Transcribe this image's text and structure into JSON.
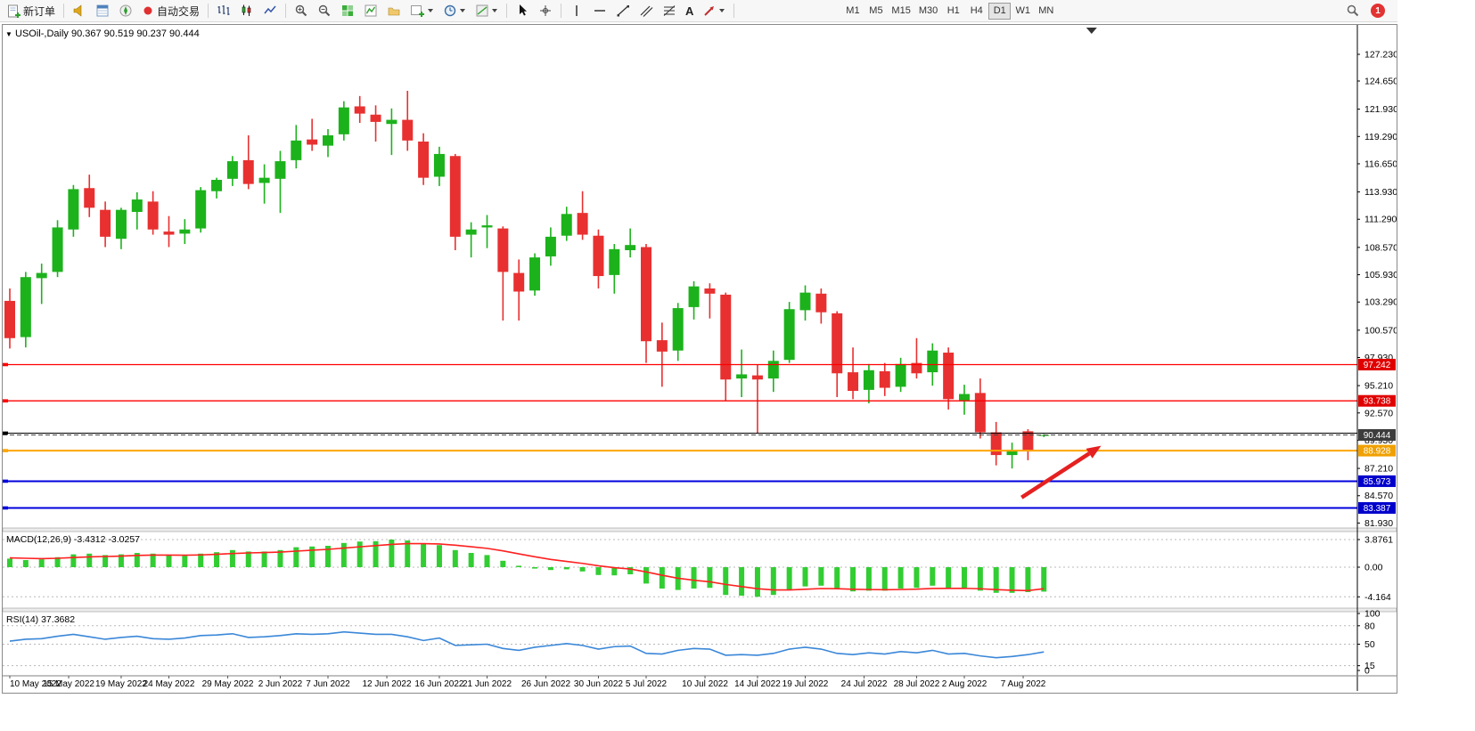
{
  "toolbar": {
    "new_order": "新订单",
    "auto_trading": "自动交易",
    "text_tool": "A",
    "timeframes": [
      "M1",
      "M5",
      "M15",
      "M30",
      "H1",
      "H4",
      "D1",
      "W1",
      "MN"
    ],
    "active_timeframe": "D1",
    "notification_count": "1"
  },
  "chart": {
    "symbol_title": "USOil-,Daily",
    "ohlc_text": "90.367 90.519 90.237 90.444",
    "price_axis_labels": [
      "127.230",
      "124.650",
      "121.930",
      "119.290",
      "116.650",
      "113.930",
      "111.290",
      "108.570",
      "105.930",
      "103.290",
      "100.570",
      "97.930",
      "95.210",
      "92.570",
      "89.930",
      "87.210",
      "84.570",
      "81.930"
    ],
    "colors": {
      "up": "#1CB21C",
      "down": "#E83030",
      "macd_hist": "#32CD32",
      "macd_signal": "#FF2020",
      "rsi_line": "#3A87D8",
      "arrow": "#E52020"
    },
    "levels": [
      {
        "price": 97.242,
        "tag": "97.242",
        "color": "#FF0000",
        "tag_bg": "#E00000",
        "width": 1.3,
        "style": "solid"
      },
      {
        "price": 93.738,
        "tag": "93.738",
        "color": "#FF0000",
        "tag_bg": "#E00000",
        "width": 1.3,
        "style": "solid"
      },
      {
        "price": 90.62,
        "tag": null,
        "color": "#000000",
        "tag_bg": null,
        "width": 1,
        "style": "solid"
      },
      {
        "price": 90.444,
        "tag": "90.444",
        "color": "#444444",
        "tag_bg": "#3C3C3C",
        "width": 1,
        "style": "dashed"
      },
      {
        "price": 88.928,
        "tag": "88.928",
        "color": "#FFA500",
        "tag_bg": "#F0A000",
        "width": 2,
        "style": "solid"
      },
      {
        "price": 85.973,
        "tag": "85.973",
        "color": "#0000DD",
        "tag_bg": "#0000CC",
        "width": 2,
        "style": "solid"
      },
      {
        "price": 83.387,
        "tag": "83.387",
        "color": "#0000DD",
        "tag_bg": "#0000CC",
        "width": 2,
        "style": "solid"
      }
    ],
    "arrow": {
      "from": {
        "i": 63.6,
        "price": 84.4
      },
      "to": {
        "i": 68.6,
        "price": 89.4
      }
    }
  },
  "macd": {
    "label": "MACD(12,26,9) -3.4312 -3.0257",
    "axis_labels": [
      "3.8761",
      "0.00",
      "-4.164"
    ]
  },
  "rsi": {
    "label": "RSI(14) 37.3682",
    "axis_labels": [
      "100",
      "80",
      "50",
      "15",
      "0"
    ]
  },
  "chart_data": {
    "type": "candlestick",
    "symbol": "USOil",
    "timeframe": "Daily",
    "candles": [
      [
        "2022-05-10",
        103.4,
        104.6,
        98.8,
        99.8
      ],
      [
        "2022-05-11",
        99.9,
        106.2,
        98.9,
        105.7
      ],
      [
        "2022-05-12",
        105.6,
        107.0,
        103.1,
        106.1
      ],
      [
        "2022-05-13",
        106.2,
        111.2,
        105.7,
        110.5
      ],
      [
        "2022-05-16",
        110.3,
        114.6,
        109.6,
        114.2
      ],
      [
        "2022-05-17",
        114.3,
        115.6,
        111.5,
        112.4
      ],
      [
        "2022-05-18",
        112.2,
        113.0,
        108.6,
        109.6
      ],
      [
        "2022-05-19",
        109.4,
        112.4,
        108.4,
        112.2
      ],
      [
        "2022-05-20",
        112.0,
        113.9,
        110.3,
        113.2
      ],
      [
        "2022-05-23",
        113.0,
        114.0,
        109.8,
        110.3
      ],
      [
        "2022-05-24",
        110.1,
        111.6,
        108.6,
        109.8
      ],
      [
        "2022-05-25",
        109.9,
        111.3,
        108.9,
        110.3
      ],
      [
        "2022-05-26",
        110.4,
        114.4,
        110.0,
        114.1
      ],
      [
        "2022-05-27",
        114.0,
        115.3,
        113.3,
        115.1
      ],
      [
        "2022-05-30",
        115.2,
        117.4,
        114.5,
        116.9
      ],
      [
        "2022-05-31",
        117.0,
        119.4,
        114.2,
        114.7
      ],
      [
        "2022-06-01",
        114.8,
        116.6,
        112.8,
        115.3
      ],
      [
        "2022-06-02",
        115.2,
        117.9,
        111.9,
        116.9
      ],
      [
        "2022-06-03",
        117.0,
        120.4,
        116.2,
        118.9
      ],
      [
        "2022-06-06",
        119.0,
        121.0,
        117.9,
        118.5
      ],
      [
        "2022-06-07",
        118.4,
        120.0,
        117.3,
        119.4
      ],
      [
        "2022-06-08",
        119.5,
        122.7,
        118.9,
        122.1
      ],
      [
        "2022-06-09",
        122.2,
        123.2,
        120.6,
        121.5
      ],
      [
        "2022-06-10",
        121.4,
        122.3,
        118.8,
        120.7
      ],
      [
        "2022-06-13",
        120.5,
        122.0,
        117.5,
        120.9
      ],
      [
        "2022-06-14",
        120.9,
        123.7,
        117.9,
        118.9
      ],
      [
        "2022-06-15",
        118.8,
        119.6,
        114.6,
        115.3
      ],
      [
        "2022-06-16",
        115.4,
        118.3,
        114.5,
        117.6
      ],
      [
        "2022-06-17",
        117.4,
        117.6,
        108.3,
        109.6
      ],
      [
        "2022-06-20",
        109.8,
        111.0,
        107.6,
        110.3
      ],
      [
        "2022-06-21",
        110.5,
        111.7,
        108.5,
        110.7
      ],
      [
        "2022-06-22",
        110.4,
        110.6,
        101.5,
        106.2
      ],
      [
        "2022-06-23",
        106.1,
        107.4,
        101.5,
        104.3
      ],
      [
        "2022-06-24",
        104.4,
        108.0,
        103.9,
        107.6
      ],
      [
        "2022-06-27",
        107.7,
        110.5,
        106.8,
        109.6
      ],
      [
        "2022-06-28",
        109.7,
        112.5,
        109.2,
        111.8
      ],
      [
        "2022-06-29",
        111.9,
        114.0,
        109.3,
        109.8
      ],
      [
        "2022-06-30",
        109.7,
        110.3,
        104.6,
        105.8
      ],
      [
        "2022-07-01",
        105.9,
        108.9,
        104.1,
        108.4
      ],
      [
        "2022-07-04",
        108.3,
        110.4,
        107.6,
        108.8
      ],
      [
        "2022-07-05",
        108.6,
        108.9,
        97.4,
        99.5
      ],
      [
        "2022-07-06",
        99.6,
        101.3,
        95.1,
        98.5
      ],
      [
        "2022-07-07",
        98.6,
        103.2,
        97.6,
        102.7
      ],
      [
        "2022-07-08",
        102.8,
        105.3,
        101.6,
        104.8
      ],
      [
        "2022-07-11",
        104.6,
        105.1,
        101.7,
        104.1
      ],
      [
        "2022-07-12",
        104.0,
        104.2,
        93.8,
        95.8
      ],
      [
        "2022-07-13",
        95.9,
        98.7,
        94.1,
        96.3
      ],
      [
        "2022-07-14",
        96.2,
        97.2,
        90.6,
        95.8
      ],
      [
        "2022-07-15",
        95.9,
        98.6,
        94.6,
        97.6
      ],
      [
        "2022-07-18",
        97.7,
        103.3,
        97.4,
        102.6
      ],
      [
        "2022-07-19",
        102.5,
        104.9,
        101.5,
        104.2
      ],
      [
        "2022-07-20",
        104.1,
        104.6,
        101.2,
        102.3
      ],
      [
        "2022-07-21",
        102.2,
        102.4,
        94.1,
        96.4
      ],
      [
        "2022-07-22",
        96.5,
        98.9,
        93.9,
        94.7
      ],
      [
        "2022-07-25",
        94.8,
        97.3,
        93.5,
        96.7
      ],
      [
        "2022-07-26",
        96.6,
        97.4,
        94.2,
        95.0
      ],
      [
        "2022-07-27",
        95.1,
        97.9,
        94.6,
        97.3
      ],
      [
        "2022-07-28",
        97.4,
        99.8,
        95.9,
        96.4
      ],
      [
        "2022-07-29",
        96.5,
        99.3,
        95.2,
        98.6
      ],
      [
        "2022-08-01",
        98.4,
        98.9,
        92.9,
        93.9
      ],
      [
        "2022-08-02",
        93.8,
        95.3,
        92.4,
        94.4
      ],
      [
        "2022-08-03",
        94.5,
        95.9,
        90.1,
        90.7
      ],
      [
        "2022-08-04",
        90.7,
        91.7,
        87.5,
        88.5
      ],
      [
        "2022-08-05",
        88.5,
        89.7,
        87.2,
        89.0
      ],
      [
        "2022-08-08",
        90.8,
        91.0,
        88.0,
        88.9
      ],
      [
        "2022-08-09",
        90.367,
        90.519,
        90.237,
        90.444
      ]
    ],
    "macd_hist": [
      1.2,
      1.0,
      1.1,
      1.4,
      1.8,
      1.9,
      1.7,
      1.8,
      2.0,
      1.9,
      1.7,
      1.6,
      1.9,
      2.1,
      2.4,
      2.2,
      2.2,
      2.4,
      2.8,
      2.9,
      3.0,
      3.4,
      3.6,
      3.65,
      3.88,
      3.75,
      3.3,
      3.1,
      2.4,
      2.0,
      1.7,
      0.9,
      0.2,
      -0.2,
      -0.4,
      -0.3,
      -0.6,
      -1.1,
      -1.15,
      -1.0,
      -2.3,
      -3.0,
      -3.2,
      -3.0,
      -2.9,
      -3.9,
      -4.0,
      -4.16,
      -3.9,
      -3.2,
      -2.7,
      -2.6,
      -3.1,
      -3.4,
      -3.3,
      -3.3,
      -3.0,
      -2.9,
      -2.6,
      -2.95,
      -2.9,
      -3.3,
      -3.6,
      -3.6,
      -3.5,
      -3.4312
    ],
    "macd_signal": [
      1.3,
      1.25,
      1.2,
      1.25,
      1.35,
      1.45,
      1.5,
      1.55,
      1.65,
      1.7,
      1.7,
      1.68,
      1.72,
      1.8,
      1.92,
      2.0,
      2.05,
      2.12,
      2.25,
      2.38,
      2.5,
      2.68,
      2.86,
      3.02,
      3.19,
      3.3,
      3.3,
      3.26,
      3.09,
      2.87,
      2.64,
      2.29,
      1.87,
      1.46,
      1.09,
      0.81,
      0.53,
      0.2,
      -0.07,
      -0.26,
      -0.66,
      -1.13,
      -1.55,
      -1.84,
      -2.05,
      -2.42,
      -2.73,
      -3.02,
      -3.2,
      -3.2,
      -3.1,
      -3.0,
      -3.02,
      -3.1,
      -3.14,
      -3.17,
      -3.14,
      -3.09,
      -2.99,
      -2.98,
      -2.97,
      -3.03,
      -3.15,
      -3.24,
      -3.29,
      -3.0257
    ],
    "rsi": [
      55,
      58,
      59,
      63,
      66,
      62,
      58,
      61,
      63,
      59,
      58,
      60,
      64,
      65,
      67,
      61,
      62,
      64,
      67,
      66,
      67,
      70,
      68,
      66,
      66,
      62,
      56,
      60,
      48,
      49,
      50,
      43,
      40,
      45,
      48,
      51,
      48,
      42,
      46,
      47,
      35,
      34,
      40,
      43,
      42,
      32,
      33,
      32,
      35,
      42,
      45,
      42,
      35,
      33,
      36,
      34,
      38,
      36,
      40,
      34,
      35,
      31,
      28,
      30,
      33,
      37.37
    ],
    "date_ticks": [
      {
        "label": "10 May 2022",
        "i": 0
      },
      {
        "label": "15 May 2022",
        "i": 3.7
      },
      {
        "label": "19 May 2022",
        "i": 7
      },
      {
        "label": "24 May 2022",
        "i": 10
      },
      {
        "label": "29 May 2022",
        "i": 13.7
      },
      {
        "label": "2 Jun 2022",
        "i": 17
      },
      {
        "label": "7 Jun 2022",
        "i": 20
      },
      {
        "label": "12 Jun 2022",
        "i": 23.7
      },
      {
        "label": "16 Jun 2022",
        "i": 27
      },
      {
        "label": "21 Jun 2022",
        "i": 30
      },
      {
        "label": "26 Jun 2022",
        "i": 33.7
      },
      {
        "label": "30 Jun 2022",
        "i": 37
      },
      {
        "label": "5 Jul 2022",
        "i": 40
      },
      {
        "label": "10 Jul 2022",
        "i": 43.7
      },
      {
        "label": "14 Jul 2022",
        "i": 47
      },
      {
        "label": "19 Jul 2022",
        "i": 50
      },
      {
        "label": "24 Jul 2022",
        "i": 53.7
      },
      {
        "label": "28 Jul 2022",
        "i": 57
      },
      {
        "label": "2 Aug 2022",
        "i": 60
      },
      {
        "label": "7 Aug 2022",
        "i": 63.7
      }
    ]
  }
}
